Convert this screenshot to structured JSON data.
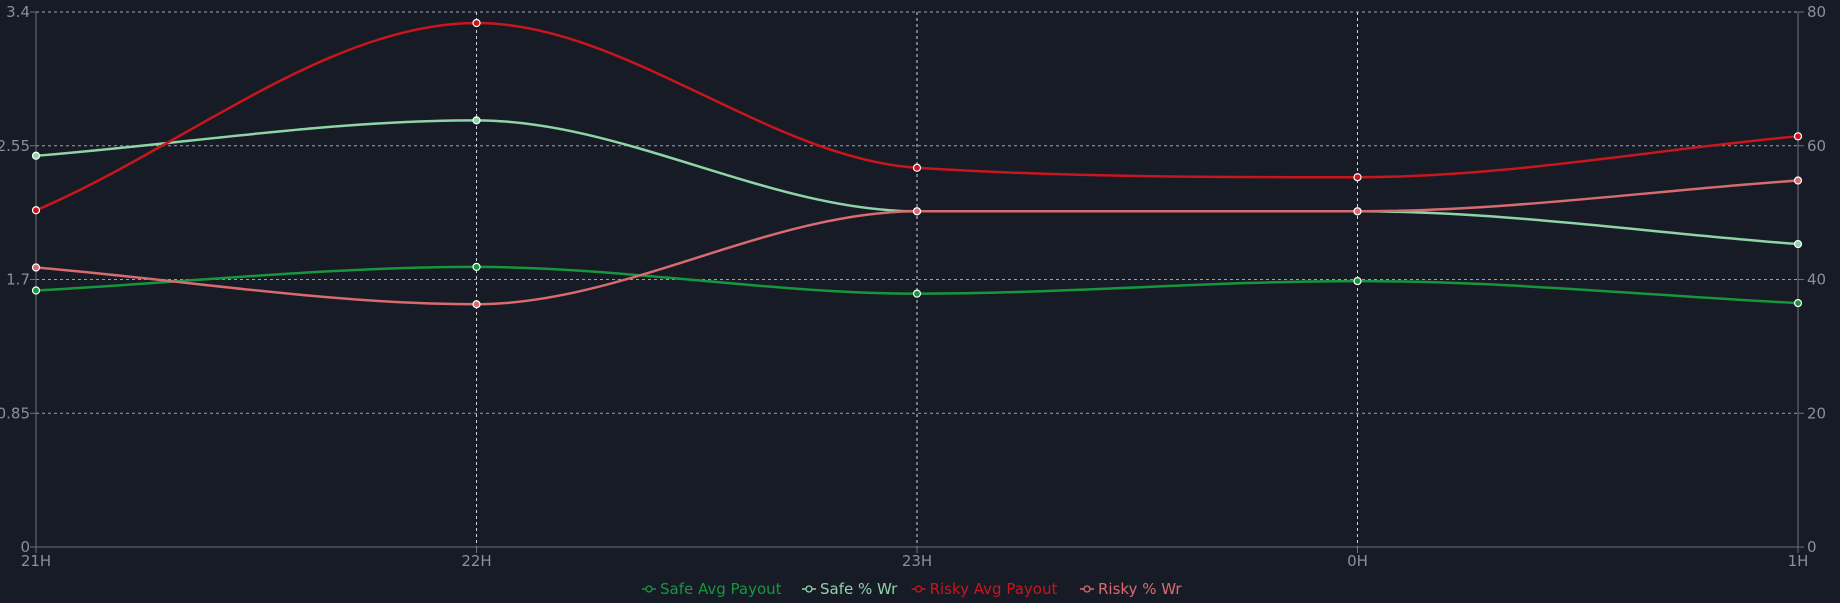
{
  "chart_data": {
    "type": "line",
    "categories": [
      "21H",
      "22H",
      "23H",
      "0H",
      "1H"
    ],
    "y_left": {
      "ticks": [
        "0",
        "0.85",
        "1.7",
        "2.55",
        "3.4"
      ],
      "ylim": [
        0,
        3.4
      ]
    },
    "y_right": {
      "ticks": [
        "0",
        "20",
        "40",
        "60",
        "80"
      ],
      "ylim": [
        0,
        80
      ]
    },
    "grid": true,
    "legend_position": "bottom-center",
    "series": [
      {
        "name": "Safe Avg Payout",
        "axis": "left",
        "color": "#17973d",
        "values": [
          1.63,
          1.78,
          1.61,
          1.69,
          1.55
        ]
      },
      {
        "name": "Safe % Wr",
        "axis": "right",
        "color": "#8fd4a7",
        "values": [
          58.5,
          63.8,
          50.2,
          50.2,
          45.3
        ]
      },
      {
        "name": "Risky Avg Payout",
        "axis": "left",
        "color": "#c8161d",
        "values": [
          2.14,
          3.33,
          2.41,
          2.35,
          2.61
        ]
      },
      {
        "name": "Risky % Wr",
        "axis": "right",
        "color": "#d86b6f",
        "values": [
          41.8,
          36.3,
          50.2,
          50.2,
          54.8
        ]
      }
    ]
  }
}
